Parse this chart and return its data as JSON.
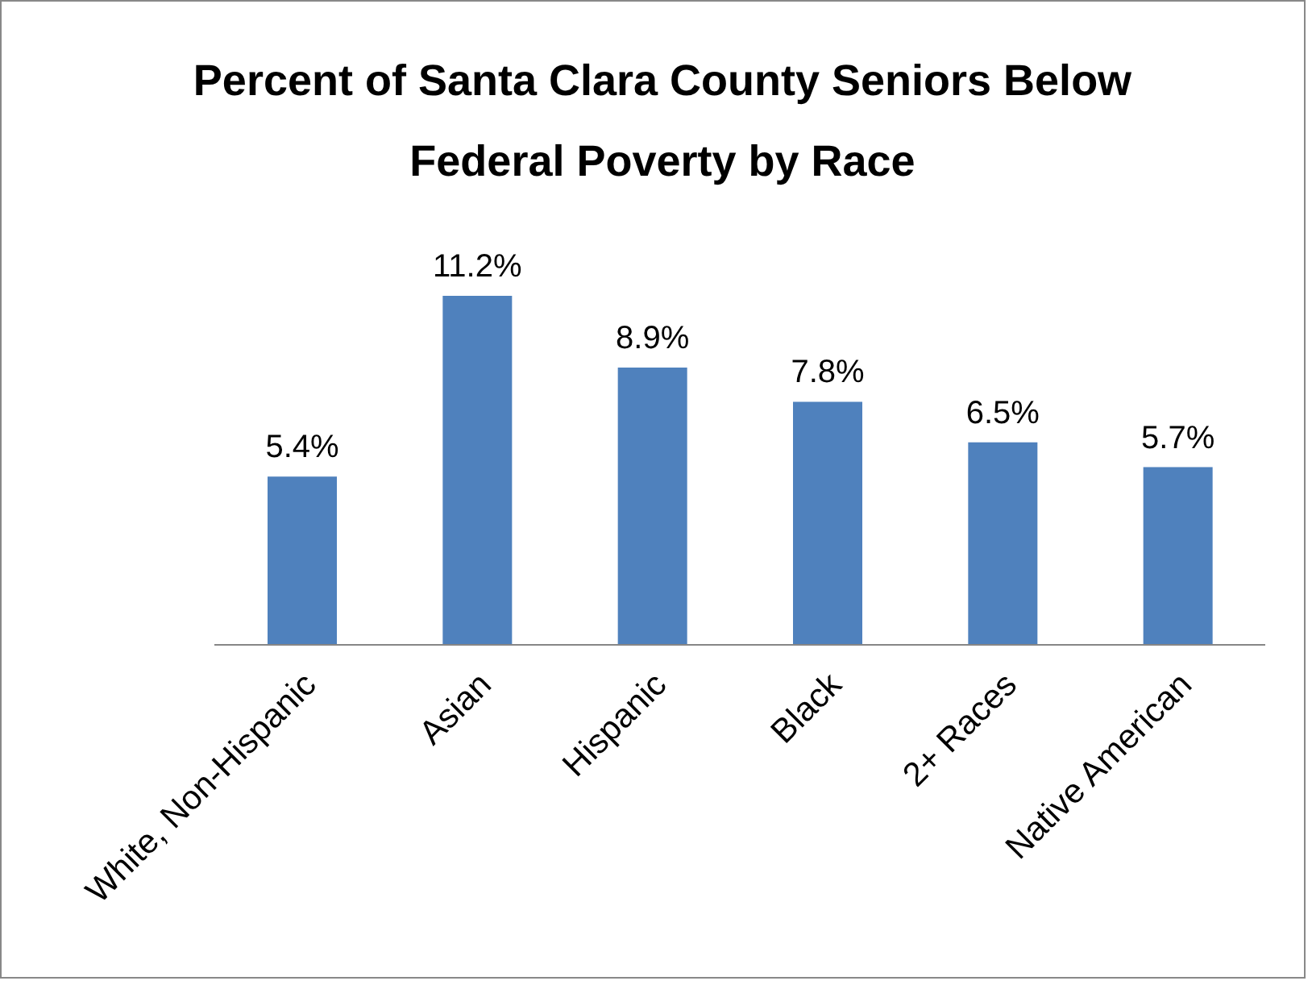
{
  "chart_data": {
    "type": "bar",
    "title": "Percent of Santa Clara County Seniors Below Federal Poverty by Race",
    "categories": [
      "White, Non-Hispanic",
      "Asian",
      "Hispanic",
      "Black",
      "2+ Races",
      "Native American"
    ],
    "values": [
      5.4,
      11.2,
      8.9,
      7.8,
      6.5,
      5.7
    ],
    "value_labels": [
      "5.4%",
      "11.2%",
      "8.9%",
      "7.8%",
      "6.5%",
      "5.7%"
    ],
    "color": "#4f81bd",
    "grid": false
  }
}
